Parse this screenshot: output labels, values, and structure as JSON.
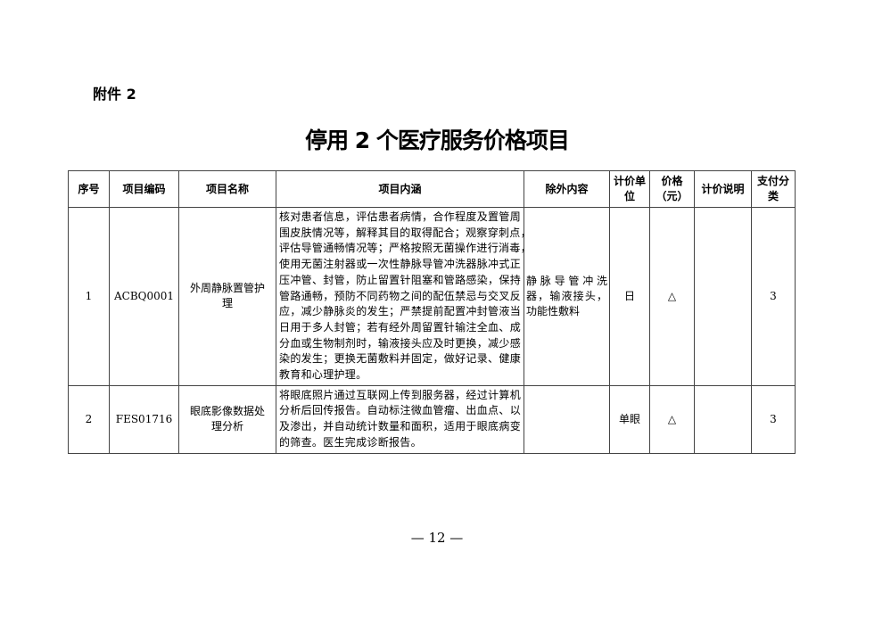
{
  "attachment_label": "附件 2",
  "title": "停用 2 个医疗服务价格项目",
  "table": {
    "headers": {
      "no": "序号",
      "code": "项目编码",
      "name": "项目名称",
      "content": "项目内涵",
      "excluded": "除外内容",
      "unit": "计价单位",
      "price": "价格（元）",
      "note": "计价说明",
      "pay": "支付分类"
    },
    "rows": [
      {
        "no": "1",
        "code": "ACBQ0001",
        "name": "外周静脉置管护理",
        "content_lines": [
          "核对患者信息，评估患者病情，合作程度及置管周",
          "围皮肤情况等，解释其目的取得配合；观察穿刺点，",
          "评估导管通畅情况等；严格按照无菌操作进行消毒，",
          "使用无菌注射器或一次性静脉导管冲洗器脉冲式正",
          "压冲管、封管，防止留置针阻塞和管路感染，保持",
          "管路通畅，预防不同药物之间的配伍禁忌与交叉反",
          "应，减少静脉炎的发生；严禁提前配置冲封管液当",
          "日用于多人封管；若有经外周留置针输注全血、成",
          "分血或生物制剂时，输液接头应及时更换，减少感",
          "染的发生；更换无菌敷料并固定，做好记录、健康",
          "教育和心理护理。"
        ],
        "excluded_lines": [
          "静脉导管冲洗",
          "器，输液接头，",
          "功能性敷料"
        ],
        "unit": "日",
        "price": "△",
        "note": "",
        "pay": "3"
      },
      {
        "no": "2",
        "code": "FES01716",
        "name": "眼底影像数据处理分析",
        "content_lines": [
          "将眼底照片通过互联网上传到服务器，经过计算机",
          "分析后回传报告。自动标注微血管瘤、出血点、以",
          "及渗出，并自动统计数量和面积，适用于眼底病变",
          "的筛查。医生完成诊断报告。"
        ],
        "excluded_lines": [],
        "unit": "单眼",
        "price": "△",
        "note": "",
        "pay": "3"
      }
    ]
  },
  "page_number": "— 12 —"
}
